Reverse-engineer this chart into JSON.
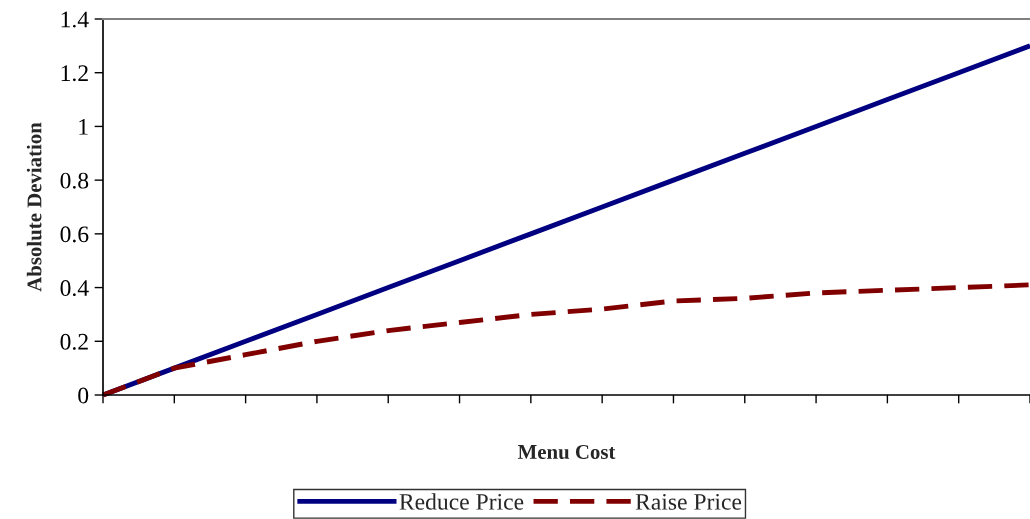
{
  "chart_data": {
    "type": "line",
    "xlabel": "Menu Cost",
    "ylabel": "Absolute Deviation",
    "categories": [
      null,
      null,
      null,
      null,
      null,
      null,
      null,
      null,
      null,
      null,
      null,
      null,
      null,
      null
    ],
    "ylim": [
      0,
      1.4
    ],
    "yticks": [
      0,
      0.2,
      0.4,
      0.6,
      0.8,
      1,
      1.2,
      1.4
    ],
    "series": [
      {
        "name": "Reduce Price",
        "color": "#000080",
        "line_style": "solid",
        "values": [
          0,
          0.1,
          0.2,
          0.3,
          0.4,
          0.5,
          0.6,
          0.7,
          0.8,
          0.9,
          1.0,
          1.1,
          1.2,
          1.3
        ]
      },
      {
        "name": "Raise Price",
        "color": "#800000",
        "line_style": "dashed",
        "values": [
          0,
          0.1,
          0.15,
          0.2,
          0.24,
          0.27,
          0.3,
          0.32,
          0.35,
          0.36,
          0.38,
          0.39,
          0.4,
          0.41
        ]
      }
    ],
    "grid": false,
    "legend": "bottom",
    "marker": "none"
  }
}
